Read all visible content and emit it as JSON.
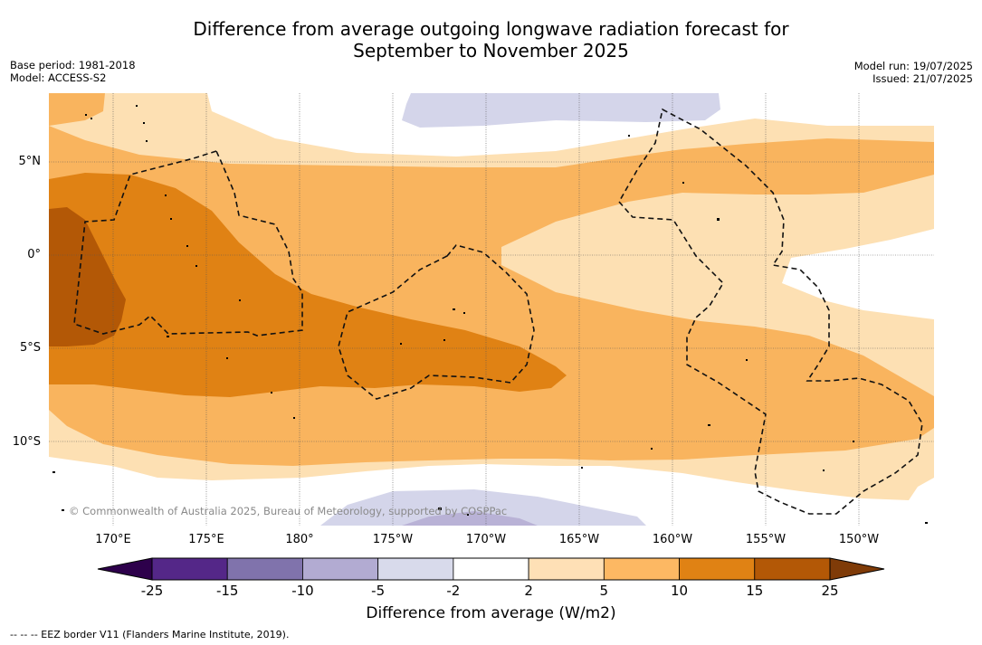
{
  "header": {
    "title_line1": "Difference from average outgoing longwave radiation forecast for",
    "title_line2": "September to November 2025",
    "base_period": "Base period: 1981-2018",
    "model": "Model: ACCESS-S2",
    "model_run": "Model run: 19/07/2025",
    "issued": "Issued: 21/07/2025"
  },
  "map": {
    "lat_labels": [
      "5°N",
      "0°",
      "5°S",
      "10°S"
    ],
    "lon_labels": [
      "170°E",
      "175°E",
      "180°",
      "175°W",
      "170°W",
      "165°W",
      "160°W",
      "155°W",
      "150°W"
    ],
    "copyright": "© Commonwealth of Australia 2025, Bureau of Meteorology, supported by COSPPac",
    "colors": {
      "c_neg5": "#d4d5ea",
      "c_2": "#fde0b3",
      "c_5": "#f9b45e",
      "c_10": "#e08214",
      "c_15": "#b35806"
    }
  },
  "colorbar": {
    "tick_labels": [
      "-25",
      "-15",
      "-10",
      "-5",
      "-2",
      "2",
      "5",
      "10",
      "15",
      "25"
    ],
    "colors": [
      "#542788",
      "#8073ac",
      "#b2abd2",
      "#d8daeb",
      "#ffffff",
      "#fee0b6",
      "#fdb863",
      "#e08214",
      "#b35806"
    ],
    "under_color": "#2d004b",
    "over_color": "#7f3b08",
    "label": "Difference from average (W/m2)"
  },
  "footnote": "--  --  -- EEZ border V11 (Flanders Marine Institute, 2019)."
}
